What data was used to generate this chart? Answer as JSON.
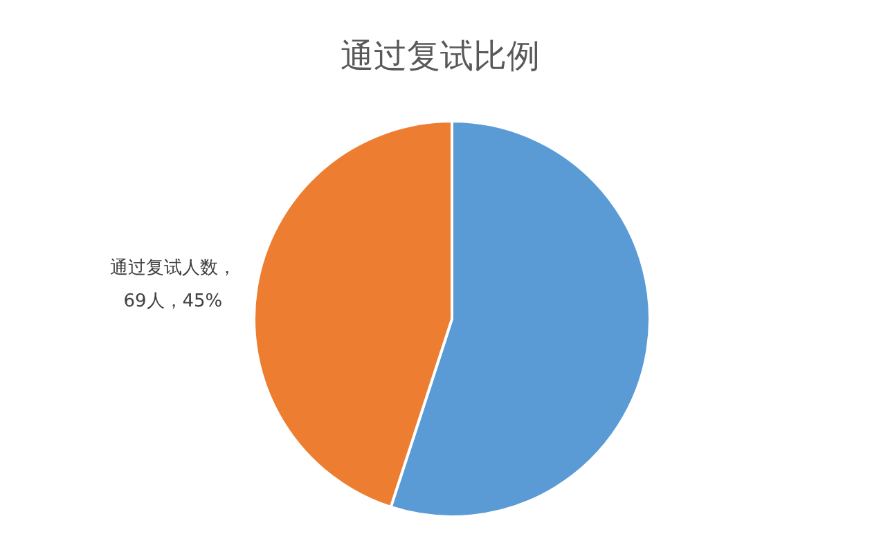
{
  "chart_data": {
    "type": "pie",
    "title": "通过复试比例",
    "categories": [
      null,
      "通过复试人数"
    ],
    "values": [
      55,
      45
    ],
    "colors": [
      "#5b9bd5",
      "#ed7d31"
    ],
    "value_labels": [
      null,
      "，\n69人，45%"
    ],
    "legend": false
  }
}
